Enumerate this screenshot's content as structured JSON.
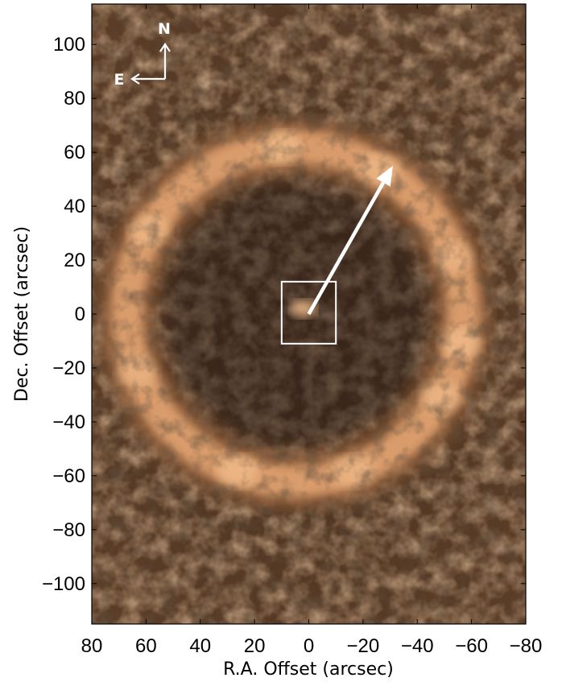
{
  "figure": {
    "xlabel": "R.A. Offset (arcsec)",
    "ylabel": "Dec. Offset (arcsec)",
    "x_ticks": [
      "80",
      "60",
      "40",
      "20",
      "0",
      "−20",
      "−40",
      "−60",
      "−80"
    ],
    "y_ticks": [
      "100",
      "80",
      "60",
      "40",
      "20",
      "0",
      "−20",
      "−40",
      "−60",
      "−80",
      "−100"
    ],
    "x_range_arcsec": [
      80,
      -80
    ],
    "y_range_arcsec": [
      -115,
      115
    ],
    "compass": {
      "north": "N",
      "east": "E"
    },
    "colormap": {
      "dark": "#2b1d12",
      "mid": "#8a5a38",
      "bright": "#f4c08e"
    },
    "ring": {
      "center_ra": 5,
      "center_dec": 0,
      "radius_arcsec": 62
    },
    "center_box": {
      "ra_min": -10,
      "ra_max": 10,
      "dec_min": -11,
      "dec_max": 12
    },
    "arrow": {
      "from_ra": 0,
      "from_dec": 0,
      "to_ra": -31,
      "to_dec": 55
    }
  }
}
